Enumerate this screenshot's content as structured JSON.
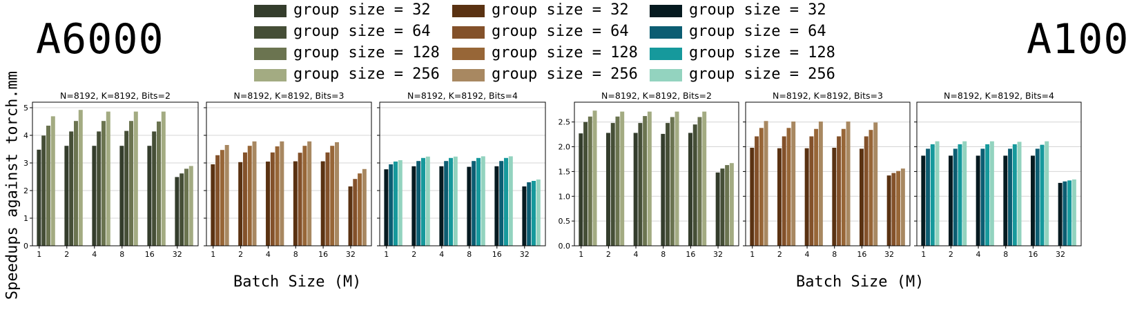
{
  "gpu_labels": {
    "left": "A6000",
    "right": "A100"
  },
  "axis_labels": {
    "y": "Speedups against torch.mm",
    "x_left": "Batch Size (M)",
    "x_right": "Batch Size (M)"
  },
  "legend": {
    "columns": [
      {
        "items": [
          {
            "label": "group size = 32",
            "color": "#343d2c"
          },
          {
            "label": "group size = 64",
            "color": "#454e36"
          },
          {
            "label": "group size = 128",
            "color": "#6b7450"
          },
          {
            "label": "group size = 256",
            "color": "#a3ab82"
          }
        ]
      },
      {
        "items": [
          {
            "label": "group size = 32",
            "color": "#5a3212"
          },
          {
            "label": "group size = 64",
            "color": "#83512a"
          },
          {
            "label": "group size = 128",
            "color": "#976637"
          },
          {
            "label": "group size = 256",
            "color": "#a88861"
          }
        ]
      },
      {
        "items": [
          {
            "label": "group size = 32",
            "color": "#061a20"
          },
          {
            "label": "group size = 64",
            "color": "#0c5d72"
          },
          {
            "label": "group size = 128",
            "color": "#16999c"
          },
          {
            "label": "group size = 256",
            "color": "#93d3bf"
          }
        ]
      }
    ]
  },
  "chart_data": [
    {
      "type": "bar",
      "gpu": "A6000",
      "title": "N=8192, K=8192, Bits=2",
      "categories": [
        "1",
        "2",
        "4",
        "8",
        "16",
        "32"
      ],
      "ylim": [
        0,
        5.2
      ],
      "yticks": [
        0,
        1,
        2,
        3,
        4,
        5
      ],
      "grid": true,
      "palette": [
        "#343d2c",
        "#454e36",
        "#6b7450",
        "#a3ab82"
      ],
      "series": [
        {
          "name": "group size = 32",
          "values": [
            3.48,
            3.62,
            3.62,
            3.62,
            3.62,
            2.49
          ]
        },
        {
          "name": "group size = 64",
          "values": [
            3.99,
            4.14,
            4.14,
            4.16,
            4.14,
            2.62
          ]
        },
        {
          "name": "group size = 128",
          "values": [
            4.35,
            4.52,
            4.52,
            4.52,
            4.5,
            2.79
          ]
        },
        {
          "name": "group size = 256",
          "values": [
            4.69,
            4.92,
            4.86,
            4.86,
            4.86,
            2.89
          ]
        }
      ]
    },
    {
      "type": "bar",
      "gpu": "A6000",
      "title": "N=8192, K=8192, Bits=3",
      "categories": [
        "1",
        "2",
        "4",
        "8",
        "16",
        "32"
      ],
      "ylim": [
        0,
        5.2
      ],
      "yticks": [
        0,
        1,
        2,
        3,
        4,
        5
      ],
      "grid": true,
      "palette": [
        "#5a3212",
        "#83512a",
        "#976637",
        "#a88861"
      ],
      "series": [
        {
          "name": "group size = 32",
          "values": [
            2.95,
            3.03,
            3.05,
            3.06,
            3.06,
            2.15
          ]
        },
        {
          "name": "group size = 64",
          "values": [
            3.28,
            3.38,
            3.38,
            3.37,
            3.38,
            2.42
          ]
        },
        {
          "name": "group size = 128",
          "values": [
            3.47,
            3.62,
            3.6,
            3.62,
            3.62,
            2.62
          ]
        },
        {
          "name": "group size = 256",
          "values": [
            3.65,
            3.78,
            3.78,
            3.78,
            3.75,
            2.78
          ]
        }
      ]
    },
    {
      "type": "bar",
      "gpu": "A6000",
      "title": "N=8192, K=8192, Bits=4",
      "categories": [
        "1",
        "2",
        "4",
        "8",
        "16",
        "32"
      ],
      "ylim": [
        0,
        5.2
      ],
      "yticks": [
        0,
        1,
        2,
        3,
        4,
        5
      ],
      "grid": true,
      "palette": [
        "#061a20",
        "#0c5d72",
        "#16999c",
        "#93d3bf"
      ],
      "series": [
        {
          "name": "group size = 32",
          "values": [
            2.77,
            2.88,
            2.88,
            2.86,
            2.88,
            2.15
          ]
        },
        {
          "name": "group size = 64",
          "values": [
            2.95,
            3.07,
            3.07,
            3.07,
            3.07,
            2.3
          ]
        },
        {
          "name": "group size = 128",
          "values": [
            3.05,
            3.18,
            3.18,
            3.18,
            3.18,
            2.35
          ]
        },
        {
          "name": "group size = 256",
          "values": [
            3.1,
            3.23,
            3.23,
            3.24,
            3.24,
            2.4
          ]
        }
      ]
    },
    {
      "type": "bar",
      "gpu": "A100",
      "title": "N=8192, K=8192, Bits=2",
      "categories": [
        "1",
        "2",
        "4",
        "8",
        "16",
        "32"
      ],
      "ylim": [
        0,
        2.9
      ],
      "yticks": [
        0.0,
        0.5,
        1.0,
        1.5,
        2.0,
        2.5
      ],
      "grid": true,
      "palette": [
        "#343d2c",
        "#454e36",
        "#6b7450",
        "#a3ab82"
      ],
      "series": [
        {
          "name": "group size = 32",
          "values": [
            2.27,
            2.28,
            2.28,
            2.26,
            2.28,
            1.48
          ]
        },
        {
          "name": "group size = 64",
          "values": [
            2.5,
            2.48,
            2.48,
            2.48,
            2.45,
            1.56
          ]
        },
        {
          "name": "group size = 128",
          "values": [
            2.61,
            2.61,
            2.62,
            2.6,
            2.6,
            1.63
          ]
        },
        {
          "name": "group size = 256",
          "values": [
            2.73,
            2.71,
            2.71,
            2.71,
            2.71,
            1.67
          ]
        }
      ]
    },
    {
      "type": "bar",
      "gpu": "A100",
      "title": "N=8192, K=8192, Bits=3",
      "categories": [
        "1",
        "2",
        "4",
        "8",
        "16",
        "32"
      ],
      "ylim": [
        0,
        2.9
      ],
      "yticks": [
        0.0,
        0.5,
        1.0,
        1.5,
        2.0,
        2.5
      ],
      "grid": true,
      "palette": [
        "#5a3212",
        "#83512a",
        "#976637",
        "#a88861"
      ],
      "series": [
        {
          "name": "group size = 32",
          "values": [
            1.98,
            1.97,
            1.97,
            1.98,
            1.96,
            1.42
          ]
        },
        {
          "name": "group size = 64",
          "values": [
            2.21,
            2.21,
            2.21,
            2.21,
            2.21,
            1.47
          ]
        },
        {
          "name": "group size = 128",
          "values": [
            2.38,
            2.38,
            2.36,
            2.36,
            2.34,
            1.51
          ]
        },
        {
          "name": "group size = 256",
          "values": [
            2.52,
            2.51,
            2.51,
            2.51,
            2.49,
            1.56
          ]
        }
      ]
    },
    {
      "type": "bar",
      "gpu": "A100",
      "title": "N=8192, K=8192, Bits=4",
      "categories": [
        "1",
        "2",
        "4",
        "8",
        "16",
        "32"
      ],
      "ylim": [
        0,
        2.9
      ],
      "yticks": [
        0.0,
        0.5,
        1.0,
        1.5,
        2.0,
        2.5
      ],
      "grid": true,
      "palette": [
        "#061a20",
        "#0c5d72",
        "#16999c",
        "#93d3bf"
      ],
      "series": [
        {
          "name": "group size = 32",
          "values": [
            1.82,
            1.82,
            1.82,
            1.82,
            1.82,
            1.27
          ]
        },
        {
          "name": "group size = 64",
          "values": [
            1.96,
            1.96,
            1.96,
            1.96,
            1.96,
            1.3
          ]
        },
        {
          "name": "group size = 128",
          "values": [
            2.05,
            2.05,
            2.05,
            2.05,
            2.04,
            1.32
          ]
        },
        {
          "name": "group size = 256",
          "values": [
            2.11,
            2.11,
            2.11,
            2.1,
            2.11,
            1.34
          ]
        }
      ]
    }
  ]
}
